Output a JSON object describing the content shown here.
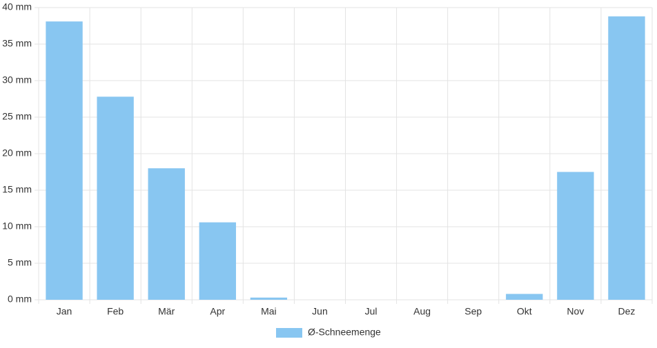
{
  "chart_data": {
    "type": "bar",
    "categories": [
      "Jan",
      "Feb",
      "Mär",
      "Apr",
      "Mai",
      "Jun",
      "Jul",
      "Aug",
      "Sep",
      "Okt",
      "Nov",
      "Dez"
    ],
    "series": [
      {
        "name": "Ø-Schneemenge",
        "color": "#88c6f1",
        "values": [
          38.1,
          27.8,
          18.0,
          10.6,
          0.3,
          0,
          0,
          0,
          0,
          0.8,
          17.5,
          38.8
        ]
      }
    ],
    "ylim": [
      0,
      40
    ],
    "yticks": [
      {
        "value": 0,
        "label": "0 mm"
      },
      {
        "value": 5,
        "label": "5 mm"
      },
      {
        "value": 10,
        "label": "10 mm"
      },
      {
        "value": 15,
        "label": "15 mm"
      },
      {
        "value": 20,
        "label": "20 mm"
      },
      {
        "value": 25,
        "label": "25 mm"
      },
      {
        "value": 30,
        "label": "30 mm"
      },
      {
        "value": 35,
        "label": "35 mm"
      },
      {
        "value": 40,
        "label": "40 mm"
      }
    ],
    "grid": true,
    "legend": "bottom"
  }
}
